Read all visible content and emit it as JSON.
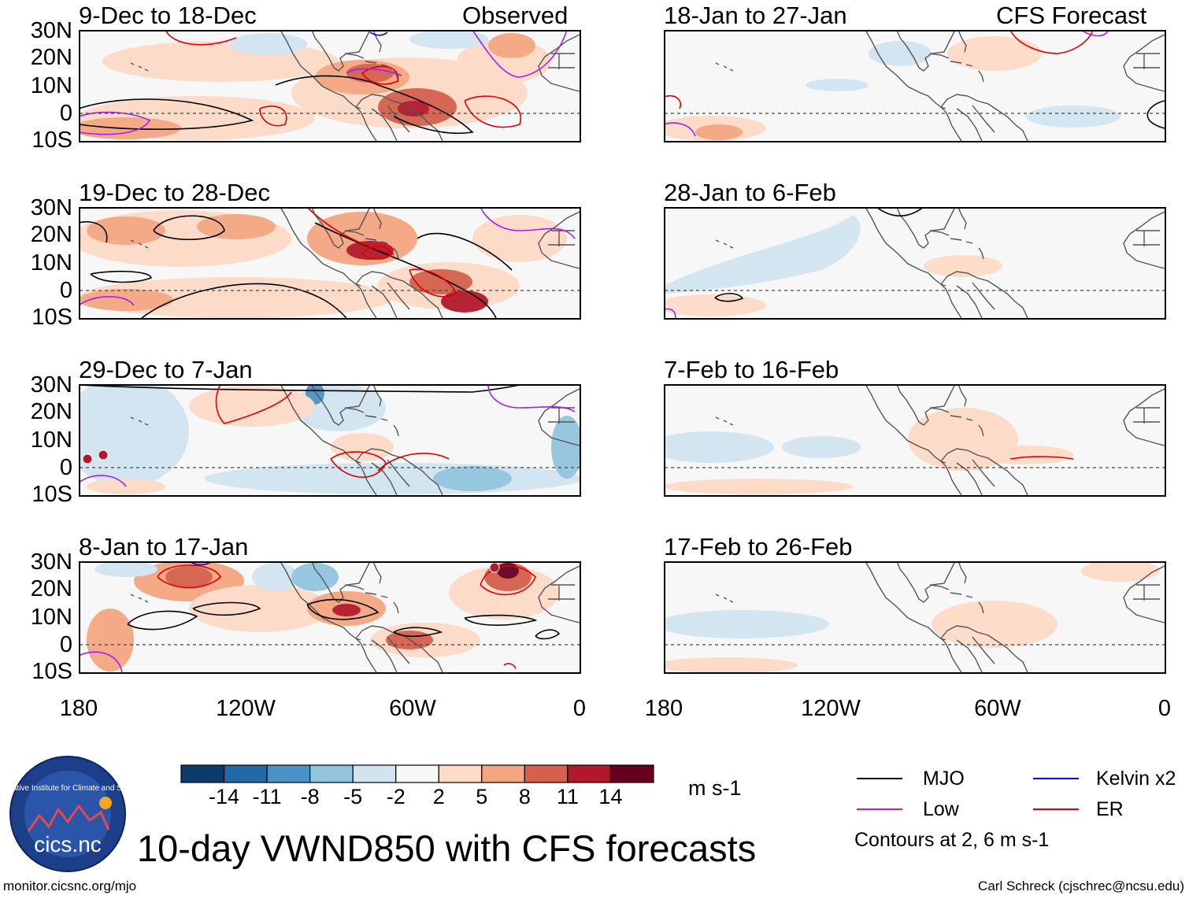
{
  "figure_title": "10-day VWND850 with CFS forecasts",
  "observed_label": "Observed",
  "forecast_label": "CFS Forecast",
  "panels_left": [
    {
      "period": "9-Dec to 18-Dec"
    },
    {
      "period": "19-Dec to 28-Dec"
    },
    {
      "period": "29-Dec to 7-Jan"
    },
    {
      "period": "8-Jan to 17-Jan"
    }
  ],
  "panels_right": [
    {
      "period": "18-Jan to 27-Jan"
    },
    {
      "period": "28-Jan to 6-Feb"
    },
    {
      "period": "7-Feb to 16-Feb"
    },
    {
      "period": "17-Feb to 26-Feb"
    }
  ],
  "lat_ticks": [
    "30N",
    "20N",
    "10N",
    "0",
    "10S"
  ],
  "lon_ticks": [
    "180",
    "120W",
    "60W",
    "0"
  ],
  "colorbar": {
    "unit": "m s-1",
    "ticks": [
      "-14",
      "-11",
      "-8",
      "-5",
      "-2",
      "2",
      "5",
      "8",
      "11",
      "14"
    ],
    "colors": [
      "#0b3c6b",
      "#2468a8",
      "#4a93c6",
      "#92c4de",
      "#d1e5f0",
      "#f7f7f7",
      "#fddbc7",
      "#f4a582",
      "#d6604d",
      "#b2182b",
      "#67001f"
    ]
  },
  "legend": {
    "items": [
      {
        "label": "MJO",
        "color": "#000000"
      },
      {
        "label": "Kelvin x2",
        "color": "#0000e0"
      },
      {
        "label": "Low",
        "color": "#a020f0"
      },
      {
        "label": "ER",
        "color": "#e00000"
      }
    ],
    "note": "Contours at 2, 6 m s-1"
  },
  "logo_text": "cics.nc",
  "logo_ring_text": "Cooperative Institute for Climate and Satellites",
  "footer_left": "monitor.cicsnc.org/mjo",
  "footer_right": "Carl Schreck (cjschrec@ncsu.edu)"
}
